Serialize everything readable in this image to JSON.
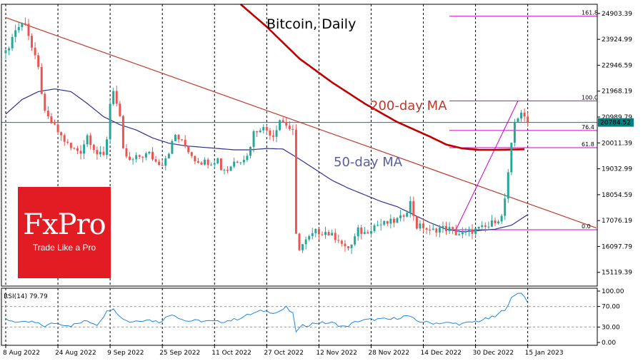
{
  "chart_data": {
    "type": "candlestick",
    "title": "Bitcoin, Daily",
    "x_tick_labels": [
      "8 Aug 2022",
      "24 Aug 2022",
      "9 Sep 2022",
      "25 Sep 2022",
      "11 Oct 2022",
      "27 Oct 2022",
      "12 Nov 2022",
      "28 Nov 2022",
      "14 Dec 2022",
      "30 Dec 2022",
      "15 Jan 2023"
    ],
    "y_tick_labels": [
      "24903.39",
      "23924.99",
      "22946.59",
      "21968.19",
      "20989.79",
      "20011.39",
      "19032.99",
      "18054.59",
      "17076.19",
      "16097.79",
      "15119.39"
    ],
    "ylim": [
      14600,
      25250
    ],
    "current_price": "20784.52",
    "close_series_anchors": [
      [
        0,
        23400
      ],
      [
        3,
        24300
      ],
      [
        6,
        24600
      ],
      [
        8,
        23600
      ],
      [
        10,
        22800
      ],
      [
        12,
        21100
      ],
      [
        15,
        20600
      ],
      [
        18,
        20100
      ],
      [
        20,
        19800
      ],
      [
        23,
        19700
      ],
      [
        25,
        20300
      ],
      [
        28,
        19600
      ],
      [
        30,
        19500
      ],
      [
        31,
        20200
      ],
      [
        32,
        21500
      ],
      [
        33,
        22050
      ],
      [
        35,
        20900
      ],
      [
        36,
        19700
      ],
      [
        38,
        19300
      ],
      [
        41,
        19500
      ],
      [
        44,
        19600
      ],
      [
        46,
        19300
      ],
      [
        48,
        19250
      ],
      [
        50,
        19700
      ],
      [
        52,
        20300
      ],
      [
        55,
        19900
      ],
      [
        58,
        19400
      ],
      [
        60,
        19300
      ],
      [
        63,
        19300
      ],
      [
        65,
        19400
      ],
      [
        66,
        19050
      ],
      [
        68,
        19000
      ],
      [
        70,
        19300
      ],
      [
        72,
        19400
      ],
      [
        74,
        19500
      ],
      [
        76,
        20400
      ],
      [
        78,
        20600
      ],
      [
        80,
        20500
      ],
      [
        82,
        20300
      ],
      [
        84,
        20900
      ],
      [
        86,
        20700
      ],
      [
        88,
        20400
      ],
      [
        89,
        16500
      ],
      [
        90,
        16050
      ],
      [
        92,
        16300
      ],
      [
        95,
        16650
      ],
      [
        98,
        16650
      ],
      [
        100,
        16500
      ],
      [
        102,
        16400
      ],
      [
        104,
        16000
      ],
      [
        106,
        16150
      ],
      [
        108,
        16700
      ],
      [
        110,
        16600
      ],
      [
        113,
        16900
      ],
      [
        116,
        16950
      ],
      [
        119,
        17050
      ],
      [
        121,
        17150
      ],
      [
        123,
        17500
      ],
      [
        124,
        17750
      ],
      [
        126,
        16850
      ],
      [
        128,
        16850
      ],
      [
        130,
        16650
      ],
      [
        133,
        16800
      ],
      [
        136,
        16750
      ],
      [
        138,
        16600
      ],
      [
        140,
        16550
      ],
      [
        142,
        16650
      ],
      [
        145,
        16750
      ],
      [
        148,
        16850
      ],
      [
        150,
        17100
      ],
      [
        152,
        17200
      ],
      [
        153,
        17900
      ],
      [
        154,
        18800
      ],
      [
        155,
        19900
      ],
      [
        156,
        20800
      ],
      [
        157,
        21000
      ],
      [
        158,
        21200
      ],
      [
        159,
        20900
      ],
      [
        160,
        20784
      ]
    ],
    "series": [
      {
        "name": "200-day MA",
        "color": "#c00000",
        "points": [
          [
            72,
            25250
          ],
          [
            80,
            24400
          ],
          [
            90,
            23200
          ],
          [
            100,
            22300
          ],
          [
            110,
            21500
          ],
          [
            120,
            20800
          ],
          [
            130,
            20250
          ],
          [
            135,
            19950
          ],
          [
            140,
            19800
          ],
          [
            145,
            19750
          ],
          [
            150,
            19750
          ],
          [
            155,
            19760
          ],
          [
            159,
            19770
          ]
        ]
      },
      {
        "name": "50-day MA",
        "color": "#2e3192",
        "points": [
          [
            0,
            21100
          ],
          [
            5,
            21650
          ],
          [
            10,
            21950
          ],
          [
            15,
            22050
          ],
          [
            20,
            21950
          ],
          [
            25,
            21500
          ],
          [
            30,
            21000
          ],
          [
            35,
            20700
          ],
          [
            40,
            20500
          ],
          [
            45,
            20200
          ],
          [
            50,
            20000
          ],
          [
            55,
            19900
          ],
          [
            60,
            19850
          ],
          [
            65,
            19800
          ],
          [
            70,
            19750
          ],
          [
            75,
            19750
          ],
          [
            80,
            19800
          ],
          [
            85,
            19780
          ],
          [
            90,
            19400
          ],
          [
            95,
            19000
          ],
          [
            100,
            18600
          ],
          [
            105,
            18300
          ],
          [
            110,
            18050
          ],
          [
            115,
            17800
          ],
          [
            120,
            17600
          ],
          [
            125,
            17300
          ],
          [
            130,
            17000
          ],
          [
            135,
            16750
          ],
          [
            140,
            16650
          ],
          [
            145,
            16700
          ],
          [
            150,
            16750
          ],
          [
            155,
            16900
          ],
          [
            160,
            17300
          ]
        ]
      }
    ],
    "trendline": {
      "color": "#c0392b",
      "points": [
        [
          0,
          24750
        ],
        [
          181,
          16800
        ]
      ]
    },
    "horizontal_line": {
      "color": "#008080",
      "value": 20784.52
    },
    "fibonacci": {
      "color": "#cc00cc",
      "levels": [
        {
          "label": "161.8",
          "value": 24800
        },
        {
          "label": "100.0",
          "value": 21600
        },
        {
          "label": "76.4",
          "value": 20480
        },
        {
          "label": "61.8",
          "value": 19830
        },
        {
          "label": "0.0",
          "value": 16730
        }
      ],
      "diagonal": [
        [
          138,
          16730
        ],
        [
          157,
          21600
        ]
      ]
    },
    "annotations": [
      {
        "text": "Bitcoin, Daily",
        "color": "#000000"
      },
      {
        "text": "200-day MA",
        "color": "#c0392b"
      },
      {
        "text": "50-day MA",
        "color": "#5a5fa0"
      }
    ],
    "rsi": {
      "label": "RSI(14) 79.79",
      "ylim": [
        0,
        100
      ],
      "y_tick_labels": [
        "100.00",
        "70.00",
        "30.00",
        "0.00"
      ],
      "levels": [
        70,
        30
      ],
      "anchors": [
        [
          0,
          45
        ],
        [
          5,
          38
        ],
        [
          8,
          40
        ],
        [
          12,
          32
        ],
        [
          15,
          38
        ],
        [
          20,
          33
        ],
        [
          25,
          42
        ],
        [
          28,
          35
        ],
        [
          31,
          60
        ],
        [
          33,
          68
        ],
        [
          35,
          50
        ],
        [
          38,
          40
        ],
        [
          43,
          45
        ],
        [
          47,
          40
        ],
        [
          51,
          56
        ],
        [
          55,
          42
        ],
        [
          60,
          42
        ],
        [
          65,
          40
        ],
        [
          70,
          44
        ],
        [
          75,
          55
        ],
        [
          79,
          62
        ],
        [
          83,
          58
        ],
        [
          86,
          68
        ],
        [
          88,
          55
        ],
        [
          89,
          22
        ],
        [
          91,
          32
        ],
        [
          95,
          38
        ],
        [
          100,
          38
        ],
        [
          104,
          30
        ],
        [
          108,
          42
        ],
        [
          113,
          45
        ],
        [
          118,
          45
        ],
        [
          123,
          52
        ],
        [
          126,
          42
        ],
        [
          130,
          38
        ],
        [
          135,
          38
        ],
        [
          140,
          36
        ],
        [
          145,
          42
        ],
        [
          150,
          50
        ],
        [
          153,
          65
        ],
        [
          155,
          85
        ],
        [
          157,
          96
        ],
        [
          158,
          98
        ],
        [
          160,
          79
        ]
      ]
    }
  },
  "brand": {
    "name": "FxPro",
    "tagline": "Trade Like a Pro"
  }
}
